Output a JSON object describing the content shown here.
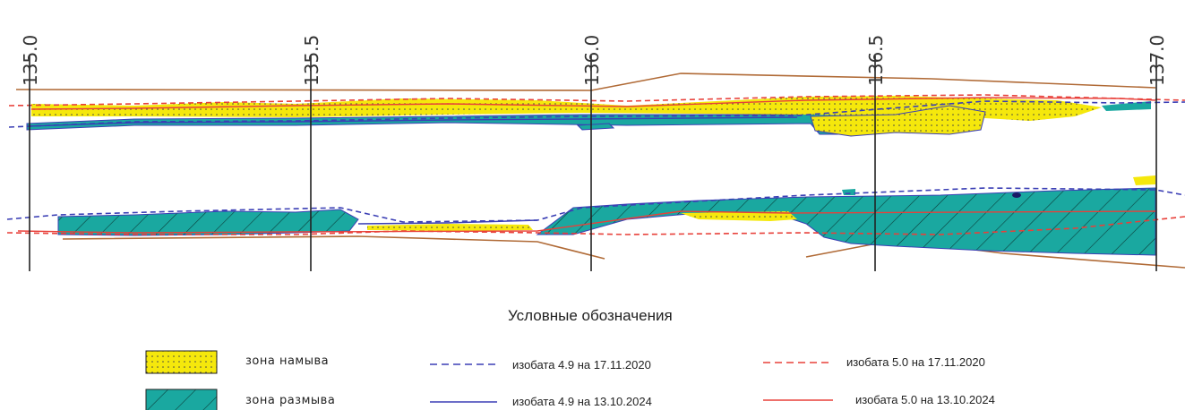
{
  "km_marks": [
    "135.0",
    "135.5",
    "136.0",
    "136.5",
    "137.0"
  ],
  "legend": {
    "title": "Условные обозначения",
    "items": [
      {
        "key": "accretion",
        "label": "зона намыва",
        "color": "#f5e80c"
      },
      {
        "key": "erosion",
        "label": "зона размыва",
        "color": "#1aa8a0"
      },
      {
        "key": "iso49_2020",
        "label": "изобата 4.9 на 17.11.2020",
        "color": "#3b3fb5",
        "style": "dashed"
      },
      {
        "key": "iso49_2024",
        "label": "изобата 4.9 на 13.10.2024",
        "color": "#3b3fb5",
        "style": "solid"
      },
      {
        "key": "iso50_2020",
        "label": "изобата 5.0 на 17.11.2020",
        "color": "#e8403a",
        "style": "dashed"
      },
      {
        "key": "iso50_2024",
        "label": "изобата 5.0 на 13.10.2024",
        "color": "#e8403a",
        "style": "solid"
      }
    ]
  },
  "colors": {
    "bank": "#b06a36",
    "profile_line": "#222222",
    "accretion": "#f5e80c",
    "erosion": "#1aa8a0",
    "isobath_49": "#3b3fb5",
    "isobath_50": "#e8403a"
  }
}
